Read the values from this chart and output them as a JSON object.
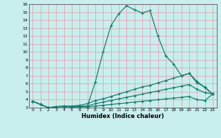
{
  "xlabel": "Humidex (Indice chaleur)",
  "xlim": [
    -0.5,
    23.5
  ],
  "ylim": [
    3,
    16
  ],
  "xticks": [
    0,
    1,
    2,
    3,
    4,
    5,
    6,
    7,
    8,
    9,
    10,
    11,
    12,
    13,
    14,
    15,
    16,
    17,
    18,
    19,
    20,
    21,
    22,
    23
  ],
  "yticks": [
    3,
    4,
    5,
    6,
    7,
    8,
    9,
    10,
    11,
    12,
    13,
    14,
    15,
    16
  ],
  "background_color": "#c8eeee",
  "grid_color": "#dda8a8",
  "line_color": "#1a7a6a",
  "lines": [
    {
      "x": [
        0,
        1,
        2,
        3,
        4,
        5,
        6,
        7,
        8,
        9,
        10,
        11,
        12,
        13,
        14,
        15,
        16,
        17,
        18,
        19,
        20,
        21,
        22,
        23
      ],
      "y": [
        3.8,
        3.4,
        3.0,
        3.1,
        3.2,
        3.1,
        3.1,
        3.2,
        6.2,
        10.0,
        13.3,
        14.8,
        15.8,
        15.3,
        14.9,
        15.2,
        12.0,
        9.5,
        8.5,
        7.0,
        7.3,
        6.3,
        5.5,
        4.7
      ]
    },
    {
      "x": [
        0,
        1,
        2,
        3,
        4,
        5,
        6,
        7,
        8,
        9,
        10,
        11,
        12,
        13,
        14,
        15,
        16,
        17,
        18,
        19,
        20,
        21,
        22,
        23
      ],
      "y": [
        3.8,
        3.4,
        3.0,
        3.1,
        3.2,
        3.2,
        3.3,
        3.5,
        3.9,
        4.1,
        4.4,
        4.7,
        5.0,
        5.3,
        5.6,
        5.8,
        6.1,
        6.4,
        6.7,
        7.0,
        7.3,
        6.1,
        5.6,
        4.7
      ]
    },
    {
      "x": [
        0,
        1,
        2,
        3,
        4,
        5,
        6,
        7,
        8,
        9,
        10,
        11,
        12,
        13,
        14,
        15,
        16,
        17,
        18,
        19,
        20,
        21,
        22,
        23
      ],
      "y": [
        3.8,
        3.4,
        3.0,
        3.1,
        3.2,
        3.1,
        3.2,
        3.2,
        3.5,
        3.7,
        3.9,
        4.1,
        4.3,
        4.5,
        4.7,
        4.9,
        5.1,
        5.3,
        5.5,
        5.7,
        5.9,
        5.3,
        4.9,
        4.7
      ]
    },
    {
      "x": [
        0,
        1,
        2,
        3,
        4,
        5,
        6,
        7,
        8,
        9,
        10,
        11,
        12,
        13,
        14,
        15,
        16,
        17,
        18,
        19,
        20,
        21,
        22,
        23
      ],
      "y": [
        3.8,
        3.4,
        3.0,
        3.1,
        3.1,
        3.1,
        3.1,
        3.1,
        3.2,
        3.3,
        3.4,
        3.5,
        3.6,
        3.7,
        3.8,
        3.9,
        4.0,
        4.1,
        4.2,
        4.3,
        4.4,
        4.0,
        3.9,
        4.7
      ]
    }
  ]
}
